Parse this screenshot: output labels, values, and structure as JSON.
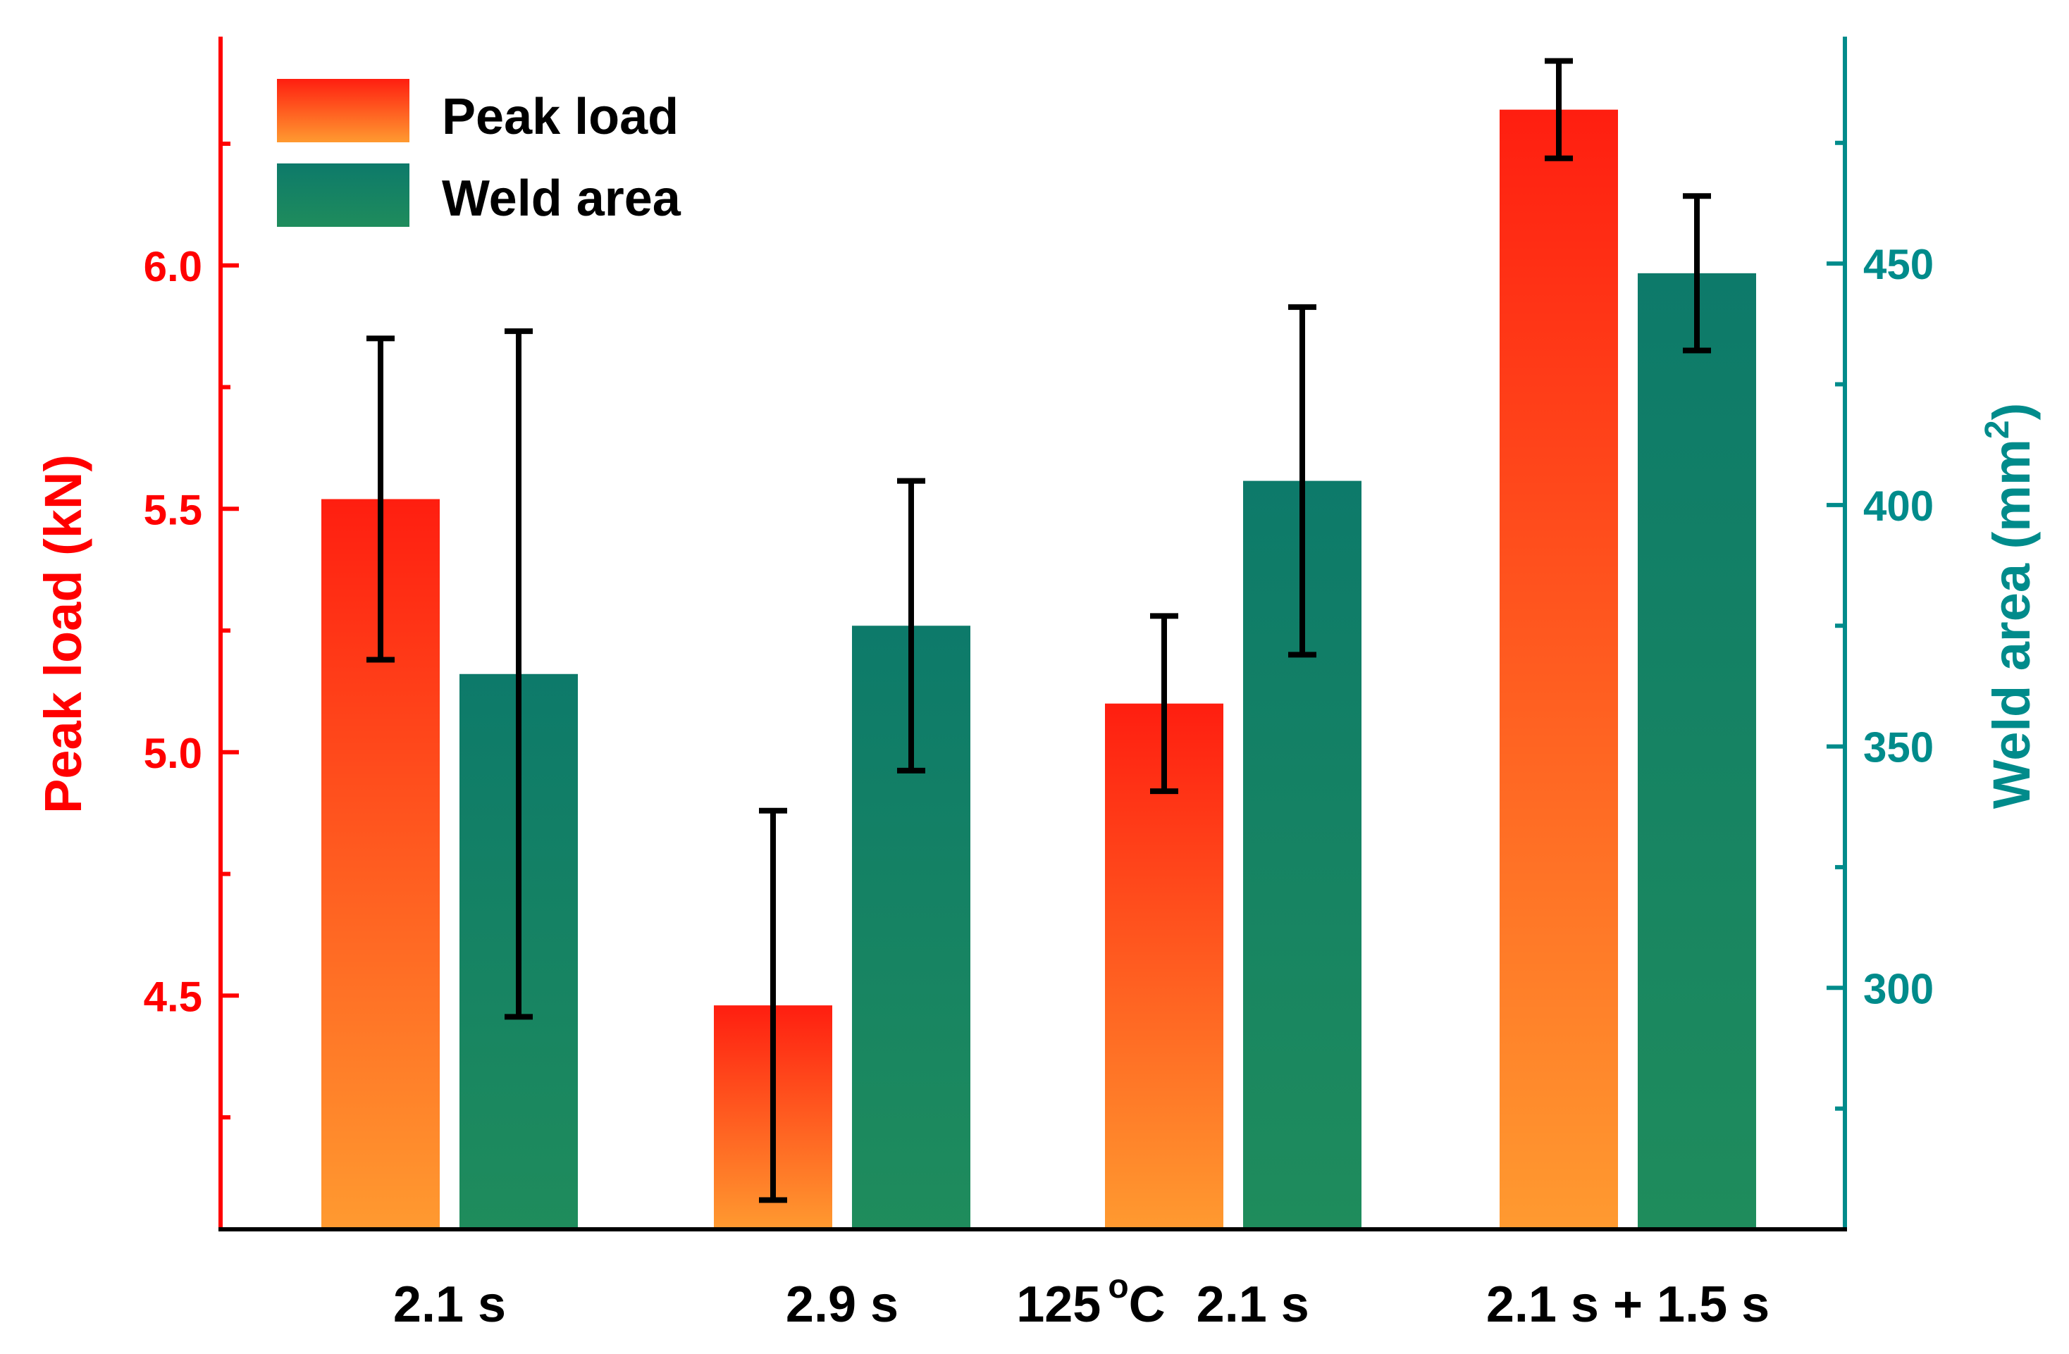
{
  "chart_data": {
    "type": "bar",
    "title": "",
    "categories": [
      "2.1 s",
      "2.9 s",
      "125 °C  2.1 s",
      "2.1 s + 1.5 s"
    ],
    "category_labels": [
      {
        "text": "2.1 s"
      },
      {
        "text": "2.9 s"
      },
      {
        "main": "125",
        "sup": "o",
        "unit": "C",
        "tail": "2.1 s"
      },
      {
        "text": "2.1 s + 1.5 s"
      }
    ],
    "series": [
      {
        "name": "Peak load",
        "axis": "left",
        "values": [
          5.52,
          4.48,
          5.1,
          6.32
        ],
        "errors": [
          0.33,
          0.4,
          0.18,
          0.1
        ]
      },
      {
        "name": "Weld area",
        "axis": "right",
        "values": [
          365,
          375,
          405,
          448
        ],
        "errors": [
          71,
          30,
          36,
          16
        ]
      }
    ],
    "ylabel_left": "Peak load (kN)",
    "ylabel_right_main": "Weld area (mm",
    "ylabel_right_sup": "2",
    "ylabel_right_close": ")",
    "ylim_left": [
      4.02,
      6.47
    ],
    "ylim_right": [
      250,
      497
    ],
    "yticks_left": [
      "4.5",
      "5.0",
      "5.5",
      "6.0"
    ],
    "yticks_right": [
      "300",
      "350",
      "400",
      "450"
    ],
    "legend": [
      "Peak load",
      "Weld area"
    ],
    "legend_position": "top-left",
    "grid": false
  },
  "colors": {
    "peak_top": "#ff1e10",
    "peak_bottom": "#ff9a30",
    "weld_top": "#0d7a6a",
    "weld_bottom": "#1f8c5c",
    "left_axis": "#ff0000",
    "right_axis": "#008b8b",
    "error_bar": "#000000",
    "bottom_axis": "#000000"
  }
}
